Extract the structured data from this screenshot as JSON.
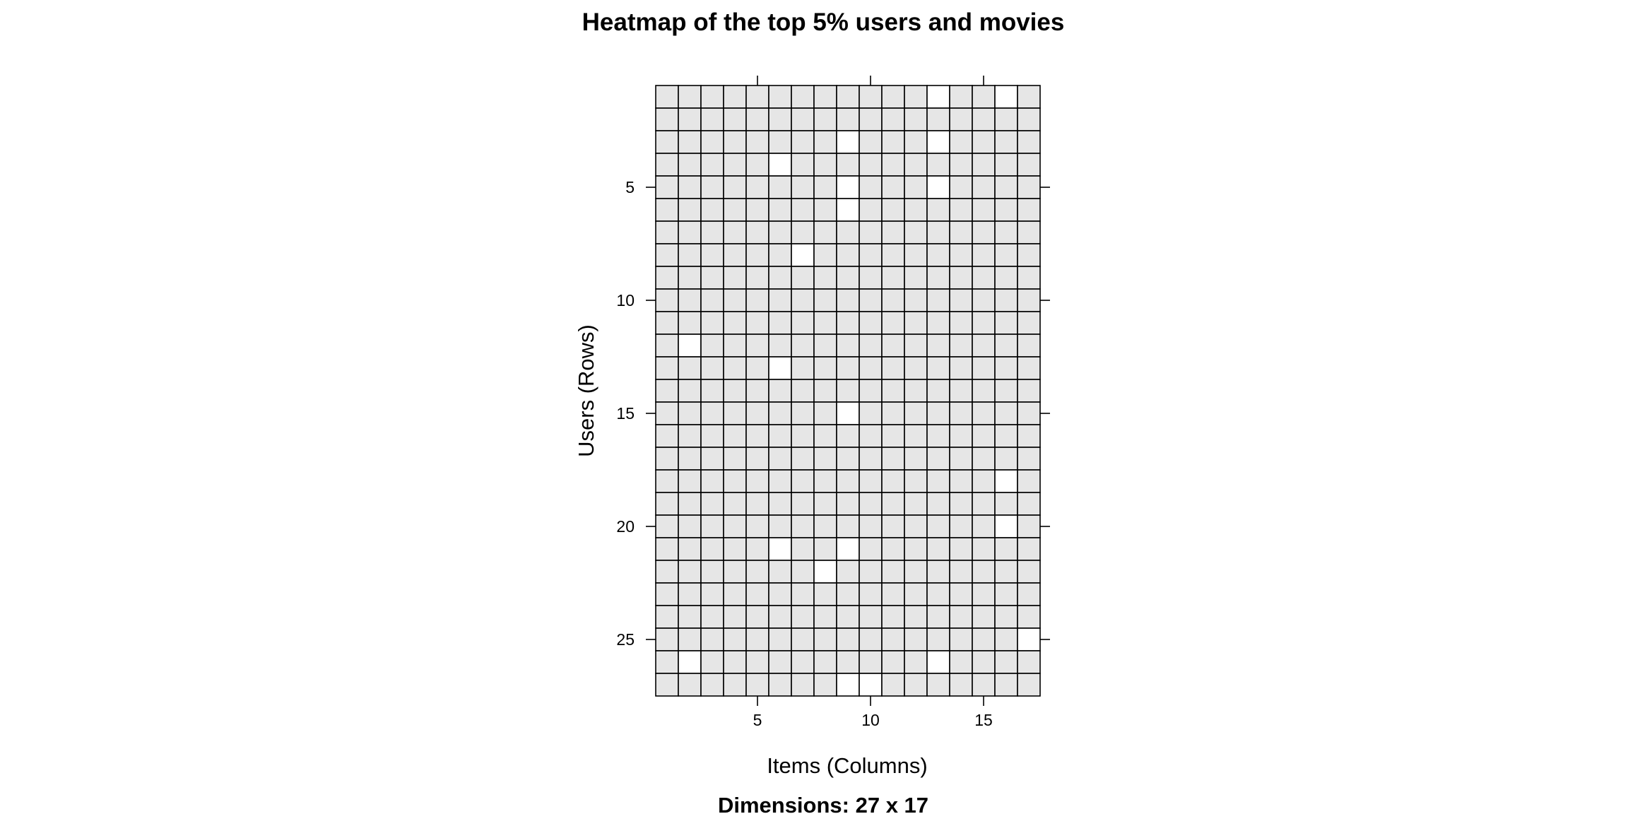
{
  "chart_data": {
    "type": "heatmap",
    "title": "Heatmap of the top 5% users and movies",
    "xlabel": "Items (Columns)",
    "ylabel": "Users (Rows)",
    "subtitle": "Dimensions: 27 x 17",
    "rows": 27,
    "cols": 17,
    "xlim": [
      0.5,
      17.5
    ],
    "ylim": [
      0.5,
      27.5
    ],
    "x_ticks": [
      5,
      10,
      15
    ],
    "y_ticks": [
      5,
      10,
      15,
      20,
      25
    ],
    "grid": true,
    "colors": {
      "filled": "#e6e6e6",
      "empty": "#ffffff",
      "border": "#000000"
    },
    "empty_cells": [
      {
        "row": 1,
        "col": 13
      },
      {
        "row": 1,
        "col": 16
      },
      {
        "row": 3,
        "col": 9
      },
      {
        "row": 3,
        "col": 13
      },
      {
        "row": 4,
        "col": 6
      },
      {
        "row": 5,
        "col": 9
      },
      {
        "row": 5,
        "col": 13
      },
      {
        "row": 6,
        "col": 9
      },
      {
        "row": 8,
        "col": 7
      },
      {
        "row": 12,
        "col": 2
      },
      {
        "row": 13,
        "col": 6
      },
      {
        "row": 15,
        "col": 9
      },
      {
        "row": 18,
        "col": 16
      },
      {
        "row": 20,
        "col": 16
      },
      {
        "row": 21,
        "col": 6
      },
      {
        "row": 21,
        "col": 9
      },
      {
        "row": 22,
        "col": 8
      },
      {
        "row": 25,
        "col": 17
      },
      {
        "row": 26,
        "col": 2
      },
      {
        "row": 26,
        "col": 13
      },
      {
        "row": 27,
        "col": 9
      },
      {
        "row": 27,
        "col": 10
      }
    ]
  }
}
